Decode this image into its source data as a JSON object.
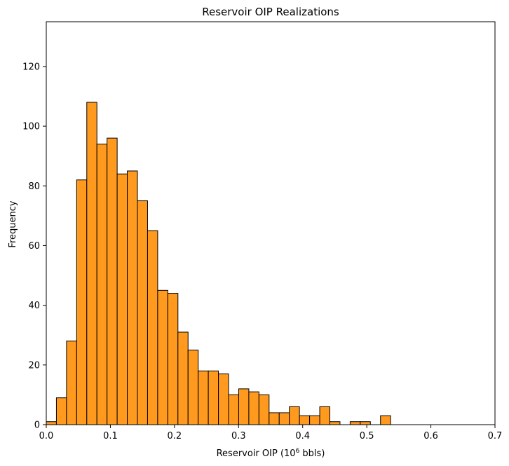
{
  "chart_data": {
    "type": "bar",
    "title": "Reservoir OIP Realizations",
    "xlabel_main": "Reservoir OIP (10",
    "xlabel_sup": "6",
    "xlabel_tail": " bbls)",
    "ylabel": "Frequency",
    "xlim": [
      0.0,
      0.7
    ],
    "ylim": [
      0,
      135
    ],
    "bin_width": 0.0158,
    "bar_color": "#ff9a1f",
    "edge_color": "#000000",
    "x_ticks": [
      0.0,
      0.1,
      0.2,
      0.3,
      0.4,
      0.5,
      0.6,
      0.7
    ],
    "x_tick_labels": [
      "0.0",
      "0.1",
      "0.2",
      "0.3",
      "0.4",
      "0.5",
      "0.6",
      "0.7"
    ],
    "y_ticks": [
      0,
      20,
      40,
      60,
      80,
      100,
      120
    ],
    "y_tick_labels": [
      "0",
      "20",
      "40",
      "60",
      "80",
      "100",
      "120"
    ],
    "bins": [
      {
        "x": 0.0,
        "count": 1
      },
      {
        "x": 0.0158,
        "count": 9
      },
      {
        "x": 0.0316,
        "count": 28
      },
      {
        "x": 0.0474,
        "count": 82
      },
      {
        "x": 0.0632,
        "count": 108
      },
      {
        "x": 0.079,
        "count": 94
      },
      {
        "x": 0.0948,
        "count": 96
      },
      {
        "x": 0.1106,
        "count": 84
      },
      {
        "x": 0.1264,
        "count": 85
      },
      {
        "x": 0.1422,
        "count": 75
      },
      {
        "x": 0.158,
        "count": 65
      },
      {
        "x": 0.1738,
        "count": 45
      },
      {
        "x": 0.1896,
        "count": 44
      },
      {
        "x": 0.2054,
        "count": 31
      },
      {
        "x": 0.2212,
        "count": 25
      },
      {
        "x": 0.237,
        "count": 18
      },
      {
        "x": 0.2528,
        "count": 18
      },
      {
        "x": 0.2686,
        "count": 17
      },
      {
        "x": 0.2844,
        "count": 10
      },
      {
        "x": 0.3002,
        "count": 12
      },
      {
        "x": 0.316,
        "count": 11
      },
      {
        "x": 0.3318,
        "count": 10
      },
      {
        "x": 0.3476,
        "count": 4
      },
      {
        "x": 0.3634,
        "count": 4
      },
      {
        "x": 0.3792,
        "count": 6
      },
      {
        "x": 0.395,
        "count": 3
      },
      {
        "x": 0.4108,
        "count": 3
      },
      {
        "x": 0.4266,
        "count": 6
      },
      {
        "x": 0.4424,
        "count": 1
      },
      {
        "x": 0.474,
        "count": 1
      },
      {
        "x": 0.4898,
        "count": 1
      },
      {
        "x": 0.5214,
        "count": 3
      }
    ]
  }
}
